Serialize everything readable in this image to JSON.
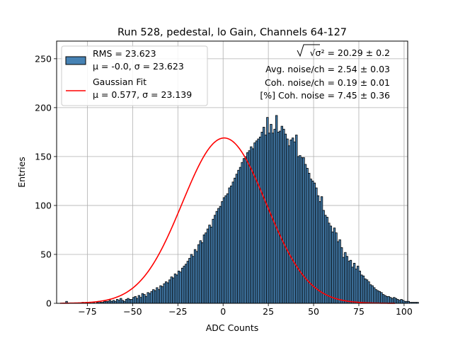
{
  "chart_data": {
    "type": "bar",
    "title": "Run 528, pedestal, lo Gain, Channels 64-127",
    "xlabel": "ADC Counts",
    "ylabel": "Entries",
    "xlim": [
      -92,
      102
    ],
    "ylim": [
      0,
      268
    ],
    "xticks": [
      -75,
      -50,
      -25,
      0,
      25,
      50,
      75,
      100
    ],
    "yticks": [
      0,
      50,
      100,
      150,
      200,
      250
    ],
    "xtick_labels": [
      "−75",
      "−50",
      "−25",
      "0",
      "25",
      "50",
      "75",
      "100"
    ],
    "ytick_labels": [
      "0",
      "50",
      "100",
      "150",
      "200",
      "250"
    ],
    "grid": true,
    "legend_position": "top-left",
    "colors": {
      "histogram": "#4682b4",
      "edge": "#000000",
      "fit": "#ff0000"
    },
    "histogram": {
      "bin_width": 1,
      "x_start": -87,
      "counts": [
        2,
        0,
        0,
        0,
        0,
        0,
        0,
        0,
        0,
        1,
        0,
        1,
        0,
        1,
        0,
        1,
        0,
        1,
        2,
        1,
        1,
        2,
        2,
        2,
        3,
        2,
        3,
        2,
        4,
        3,
        5,
        3,
        2,
        4,
        5,
        4,
        4,
        6,
        7,
        5,
        8,
        6,
        10,
        9,
        7,
        11,
        10,
        12,
        14,
        13,
        16,
        14,
        18,
        17,
        20,
        22,
        21,
        24,
        27,
        26,
        30,
        29,
        33,
        32,
        36,
        38,
        40,
        43,
        46,
        50,
        48,
        55,
        53,
        60,
        64,
        62,
        70,
        72,
        76,
        80,
        78,
        86,
        90,
        94,
        97,
        99,
        104,
        108,
        110,
        112,
        118,
        120,
        124,
        128,
        132,
        136,
        139,
        144,
        148,
        150,
        154,
        156,
        160,
        158,
        164,
        166,
        168,
        170,
        175,
        180,
        172,
        190,
        174,
        183,
        174,
        178,
        192,
        175,
        176,
        181,
        178,
        173,
        168,
        161,
        167,
        169,
        165,
        172,
        150,
        151,
        149,
        149,
        142,
        138,
        133,
        127,
        125,
        123,
        118,
        110,
        104,
        109,
        95,
        90,
        88,
        82,
        79,
        73,
        77,
        72,
        63,
        65,
        57,
        47,
        52,
        48,
        43,
        44,
        37,
        41,
        35,
        38,
        33,
        29,
        28,
        25,
        24,
        22,
        19,
        18,
        16,
        14,
        13,
        12,
        11,
        9,
        8,
        7,
        7,
        6,
        5,
        6,
        5,
        4,
        3,
        4,
        3,
        2,
        2,
        2,
        1,
        1,
        1,
        1,
        1
      ]
    },
    "series": [
      {
        "name": "RMS = 23.623",
        "name_line2": "μ = -0.0, σ = 23.623",
        "type": "histogram"
      },
      {
        "name": "Gaussian Fit",
        "name_line2": "μ = 0.577, σ = 23.139",
        "type": "line",
        "mu": 0.577,
        "sigma": 23.139,
        "amplitude": 169,
        "x_range": [
          -90,
          95
        ]
      }
    ],
    "annotations": [
      "√σ² = 20.29 ± 0.2",
      "Avg. noise/ch = 2.54 ± 0.03",
      "Coh. noise/ch = 0.19 ± 0.01",
      "[%] Coh. noise = 7.45 ± 0.36"
    ]
  }
}
